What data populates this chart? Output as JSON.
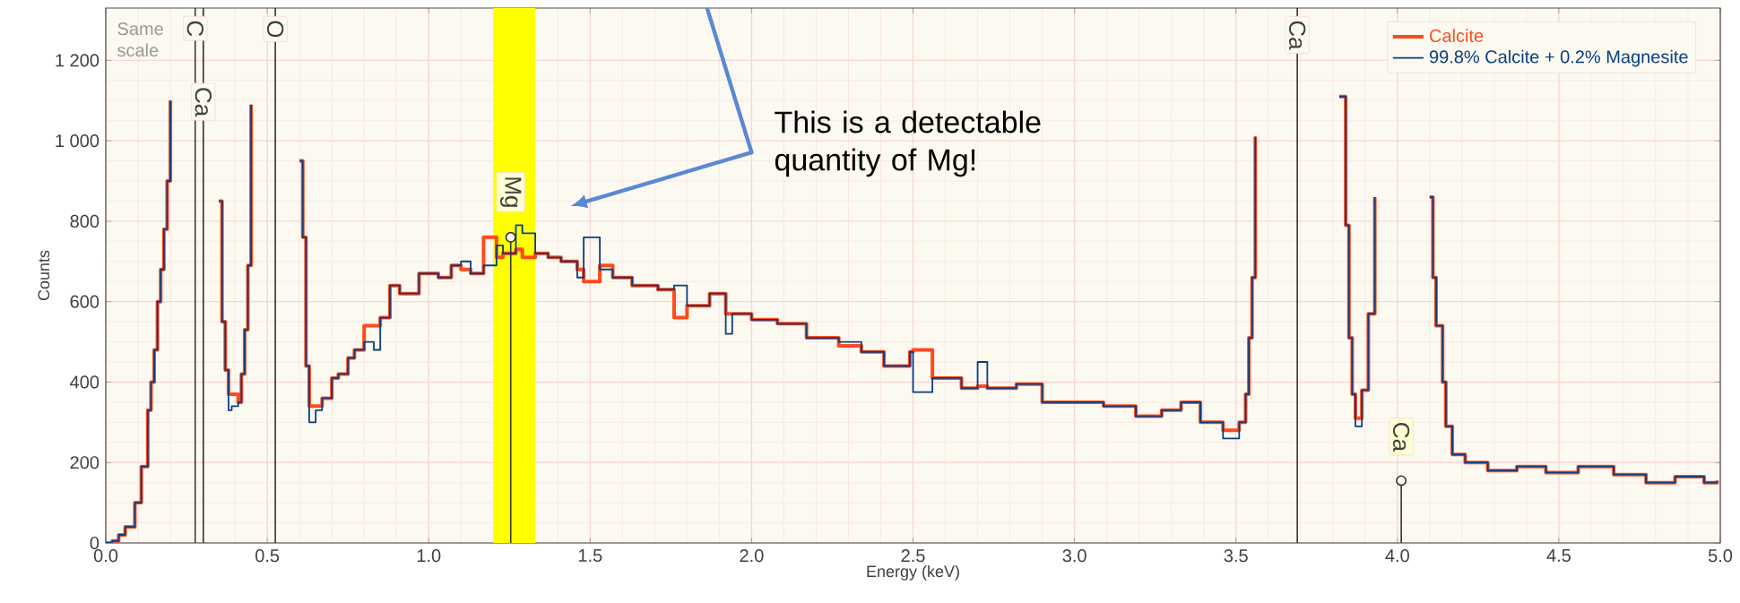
{
  "chart_data": {
    "type": "step",
    "xlabel": "Energy (keV)",
    "ylabel": "Counts",
    "x": [
      0.0,
      0.02,
      0.04,
      0.06,
      0.09,
      0.11,
      0.13,
      0.14,
      0.15,
      0.16,
      0.17,
      0.18,
      0.19,
      0.2,
      0.21,
      0.35,
      0.36,
      0.37,
      0.38,
      0.39,
      0.41,
      0.42,
      0.43,
      0.44,
      0.45,
      0.46,
      0.6,
      0.61,
      0.62,
      0.63,
      0.65,
      0.67,
      0.7,
      0.72,
      0.75,
      0.77,
      0.8,
      0.83,
      0.85,
      0.88,
      0.91,
      0.94,
      0.97,
      1.0,
      1.03,
      1.07,
      1.1,
      1.13,
      1.17,
      1.21,
      1.23,
      1.27,
      1.29,
      1.33,
      1.37,
      1.41,
      1.46,
      1.48,
      1.53,
      1.57,
      1.63,
      1.71,
      1.76,
      1.8,
      1.87,
      1.92,
      1.94,
      2.0,
      2.08,
      2.17,
      2.27,
      2.34,
      2.41,
      2.49,
      2.5,
      2.56,
      2.65,
      2.7,
      2.73,
      2.82,
      2.9,
      3.0,
      3.09,
      3.19,
      3.27,
      3.33,
      3.39,
      3.46,
      3.51,
      3.53,
      3.54,
      3.55,
      3.56,
      3.57,
      3.82,
      3.84,
      3.85,
      3.86,
      3.87,
      3.89,
      3.91,
      3.93,
      3.94,
      4.1,
      4.11,
      4.12,
      4.14,
      4.15,
      4.17,
      4.21,
      4.28,
      4.37,
      4.46,
      4.56,
      4.67,
      4.77,
      4.86,
      4.95,
      4.99
    ],
    "series": [
      {
        "name": "Calcite",
        "color": "#ff4a1c",
        "values": [
          0,
          5,
          20,
          40,
          100,
          190,
          330,
          400,
          480,
          600,
          680,
          780,
          900,
          1100,
          null,
          850,
          550,
          430,
          370,
          370,
          350,
          420,
          530,
          690,
          1090,
          null,
          950,
          760,
          440,
          340,
          340,
          360,
          410,
          420,
          460,
          480,
          540,
          540,
          560,
          640,
          620,
          620,
          670,
          670,
          660,
          690,
          680,
          670,
          760,
          710,
          720,
          730,
          710,
          720,
          710,
          700,
          680,
          650,
          690,
          660,
          640,
          630,
          560,
          590,
          620,
          570,
          570,
          555,
          545,
          510,
          490,
          475,
          440,
          475,
          480,
          410,
          385,
          390,
          385,
          395,
          350,
          350,
          340,
          315,
          330,
          350,
          300,
          280,
          300,
          370,
          510,
          660,
          1010,
          null,
          1110,
          790,
          510,
          370,
          310,
          380,
          570,
          860,
          null,
          860,
          660,
          540,
          400,
          290,
          220,
          200,
          180,
          190,
          175,
          190,
          170,
          150,
          165,
          150,
          155
        ]
      },
      {
        "name": "99.8% Calcite + 0.2% Magnesite",
        "color": "#0b3d82",
        "values": [
          0,
          5,
          20,
          40,
          100,
          190,
          330,
          400,
          480,
          600,
          680,
          780,
          900,
          1100,
          null,
          850,
          550,
          430,
          330,
          340,
          350,
          420,
          530,
          690,
          1090,
          null,
          950,
          760,
          440,
          300,
          330,
          360,
          410,
          420,
          460,
          480,
          500,
          480,
          560,
          640,
          620,
          620,
          670,
          670,
          660,
          690,
          700,
          670,
          690,
          740,
          720,
          790,
          770,
          720,
          710,
          700,
          660,
          760,
          680,
          660,
          640,
          630,
          640,
          590,
          620,
          520,
          570,
          555,
          545,
          510,
          500,
          475,
          440,
          475,
          375,
          410,
          385,
          450,
          385,
          395,
          350,
          350,
          340,
          315,
          330,
          350,
          300,
          260,
          300,
          370,
          510,
          660,
          1010,
          null,
          1110,
          790,
          510,
          370,
          290,
          380,
          570,
          860,
          null,
          860,
          660,
          540,
          400,
          290,
          220,
          200,
          180,
          190,
          175,
          190,
          170,
          150,
          165,
          150,
          155
        ]
      },
      {
        "type": "lollipop",
        "color": "#333333",
        "x": [
          1.254,
          4.012
        ],
        "values": [
          760,
          155
        ]
      }
    ],
    "xlim": [
      0,
      5
    ],
    "ylim": [
      0,
      1330
    ],
    "xticks": [
      {
        "value": 0,
        "label": "0.0"
      },
      0.5,
      {
        "value": 1,
        "label": "1.0"
      },
      1.5,
      {
        "value": 2,
        "label": "2.0"
      },
      2.5,
      {
        "value": 3,
        "label": "3.0"
      },
      3.5,
      {
        "value": 4,
        "label": "4.0"
      },
      4.5,
      {
        "value": 5,
        "label": "5.0"
      }
    ],
    "yticks": [
      0,
      200,
      400,
      600,
      800,
      {
        "value": 1000,
        "label": "1 000"
      },
      {
        "value": 1200,
        "label": "1 200"
      }
    ],
    "grid": true,
    "legend": "top right",
    "ref_lines": [
      {
        "axis": "x",
        "value": 0.277,
        "label": "C",
        "color": "#333333"
      },
      {
        "axis": "x",
        "value": 0.302,
        "label": "Ca",
        "color": "#333333"
      },
      {
        "axis": "x",
        "value": 0.525,
        "label": "O",
        "color": "#333333"
      },
      {
        "axis": "x",
        "value": 3.69,
        "label": "Ca",
        "color": "#333333"
      }
    ],
    "bands": [
      {
        "axis": "x",
        "from": 1.2,
        "to": 1.33,
        "color": "#ffff00"
      }
    ],
    "annotations": [
      "Same scale",
      {
        "text": "Mg",
        "x": 1.254,
        "y": 760
      },
      {
        "text": "Ca",
        "x": 4.012,
        "y": 155
      },
      "This is a detectable quantity of Mg!"
    ]
  }
}
